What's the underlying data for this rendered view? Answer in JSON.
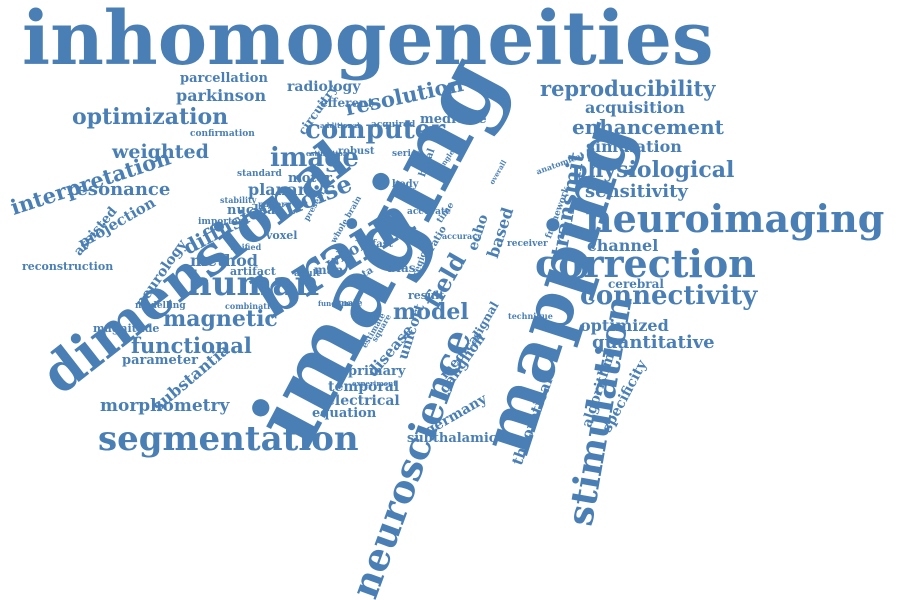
{
  "word_color": "#4a7fb5",
  "words": [
    "inhomogeneities",
    "imaging",
    "mapping",
    "dimensional",
    "brain",
    "neuroscience",
    "stimulation",
    "neuroimaging",
    "correction",
    "segmentation",
    "human",
    "connectivity",
    "reproducibility",
    "computer",
    "resolution",
    "optimization",
    "image",
    "magnetic",
    "functional",
    "field",
    "transmit",
    "enhancement",
    "acquisition",
    "physiological",
    "sensitivity",
    "simulation",
    "interpretation",
    "resonance",
    "weighted",
    "parkinson",
    "parcellation",
    "radiology",
    "efferent",
    "medicine",
    "noise",
    "diffusion",
    "projection",
    "assisted",
    "reconstruction",
    "neurology",
    "method",
    "whole",
    "model",
    "channel",
    "cerebral",
    "optimized",
    "quantitative",
    "morphometry",
    "substantia",
    "parameter",
    "temporal",
    "electrical",
    "equation",
    "primary",
    "disease",
    "germany",
    "ganglion",
    "medical",
    "subthalamic",
    "theoretical",
    "algorithm",
    "specificity",
    "planar",
    "nuclear",
    "motor",
    "voxel",
    "echo",
    "based",
    "bias",
    "fast",
    "unicort",
    "result",
    "series",
    "basal",
    "body",
    "magnitude",
    "modelling",
    "artifact",
    "standard",
    "stability",
    "confirmation",
    "circuitry",
    "robust",
    "acquired",
    "additional",
    "estimation",
    "important",
    "pattern",
    "present",
    "unified",
    "male",
    "adult",
    "data",
    "map",
    "combination",
    "function",
    "signal",
    "region",
    "receiver",
    "technique",
    "framework",
    "anatomical",
    "experiment",
    "estimate",
    "square",
    "zone",
    "ratio",
    "accuracy",
    "time",
    "accurate",
    "overall",
    "single",
    "whole brain"
  ]
}
